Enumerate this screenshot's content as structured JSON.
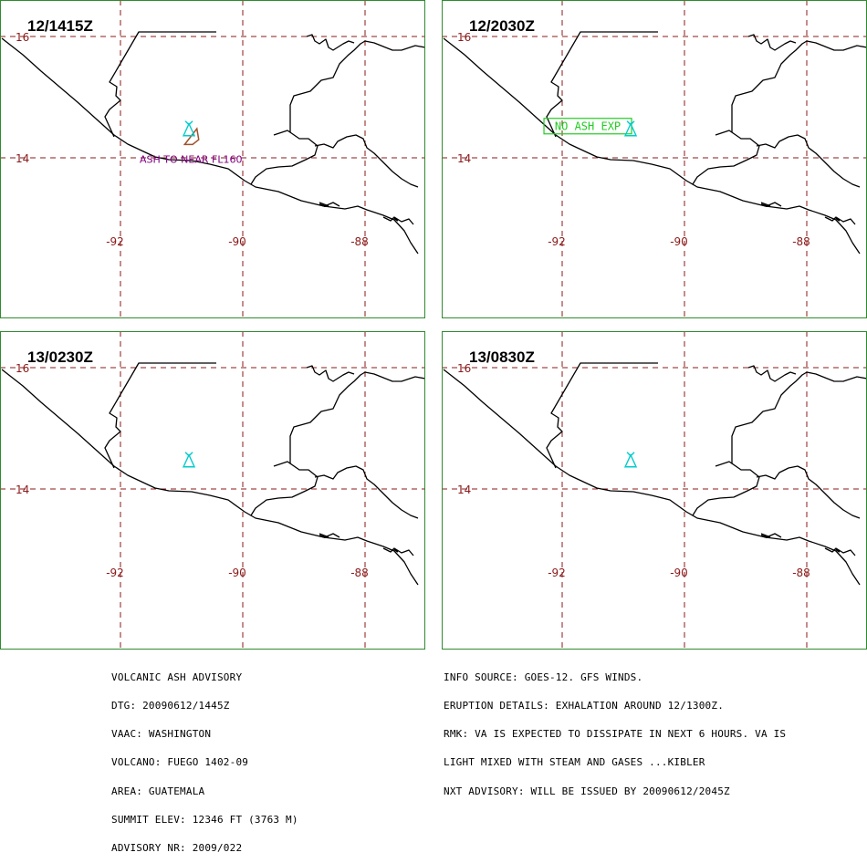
{
  "panels": [
    {
      "time": "12/1415Z",
      "ash_polygon": [
        [
          -90.95,
          14.22
        ],
        [
          -90.75,
          14.48
        ],
        [
          -90.72,
          14.3
        ],
        [
          -90.82,
          14.22
        ]
      ],
      "ash_polygon_color": "#a0522d",
      "label_text": "ASH TO NEAR FL160",
      "label_color": "#800080",
      "label_box": false
    },
    {
      "time": "12/2030Z",
      "ash_polygon": null,
      "label_text": "NO ASH EXP",
      "label_color": "#22cc22",
      "label_box": true
    },
    {
      "time": "13/0230Z",
      "ash_polygon": null,
      "label_text": "",
      "label_box": false
    },
    {
      "time": "13/0830Z",
      "ash_polygon": null,
      "label_text": "",
      "label_box": false
    }
  ],
  "map": {
    "lon_lines": [
      -92,
      -90,
      -88
    ],
    "lat_lines": [
      16,
      14
    ],
    "lon_labels": [
      "-92",
      "-90",
      "-88"
    ],
    "lat_labels": [
      "16",
      "14"
    ],
    "volcano": {
      "name": "FUEGO",
      "lon": -90.88,
      "lat": 14.47
    },
    "volcano_color": "#00cccc",
    "grid_color": "#8b1a1a",
    "border_color": "#2e8b2e",
    "coast_color": "#000000"
  },
  "advisory_left": [
    "VOLCANIC ASH ADVISORY",
    "DTG: 20090612/1445Z",
    "VAAC: WASHINGTON",
    "VOLCANO: FUEGO 1402-09",
    "AREA: GUATEMALA",
    "SUMMIT ELEV: 12346 FT (3763 M)",
    "ADVISORY NR: 2009/022"
  ],
  "advisory_right": [
    "INFO SOURCE: GOES-12. GFS WINDS.",
    "ERUPTION DETAILS: EXHALATION AROUND 12/1300Z.",
    "RMK: VA IS EXPECTED TO DISSIPATE IN NEXT 6 HOURS. VA IS",
    "LIGHT MIXED WITH STEAM AND GASES ...KIBLER",
    "NXT ADVISORY: WILL BE ISSUED BY 20090612/2045Z"
  ]
}
